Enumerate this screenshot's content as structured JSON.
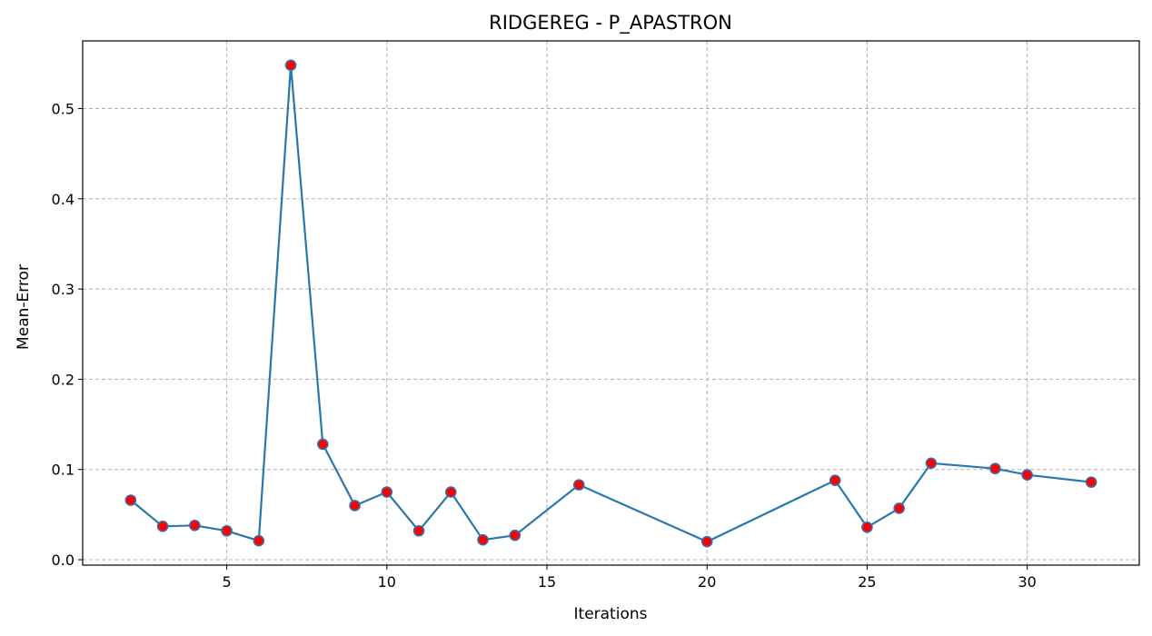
{
  "chart_data": {
    "type": "line",
    "title": "RIDGEREG - P_APASTRON",
    "xlabel": "Iterations",
    "ylabel": "Mean-Error",
    "xlim": [
      0.5,
      33.5
    ],
    "ylim": [
      -0.006,
      0.575
    ],
    "xticks": [
      5,
      10,
      15,
      20,
      25,
      30
    ],
    "yticks": [
      0.0,
      0.1,
      0.2,
      0.3,
      0.4,
      0.5
    ],
    "xtick_labels": [
      "5",
      "10",
      "15",
      "20",
      "25",
      "30"
    ],
    "ytick_labels": [
      "0.0",
      "0.1",
      "0.2",
      "0.3",
      "0.4",
      "0.5"
    ],
    "grid": true,
    "line_color": "#2a77ac",
    "marker_fill": "#ff0000",
    "marker_edge": "#3a6ea5",
    "series": [
      {
        "x": [
          2,
          3,
          4,
          5,
          6,
          7,
          8,
          9,
          10,
          11,
          12,
          13,
          14,
          16,
          20,
          24,
          25,
          26,
          27,
          29,
          30,
          32
        ],
        "y": [
          0.066,
          0.037,
          0.038,
          0.032,
          0.021,
          0.548,
          0.128,
          0.06,
          0.075,
          0.032,
          0.075,
          0.022,
          0.027,
          0.083,
          0.02,
          0.088,
          0.036,
          0.057,
          0.107,
          0.101,
          0.094,
          0.086
        ]
      }
    ]
  }
}
